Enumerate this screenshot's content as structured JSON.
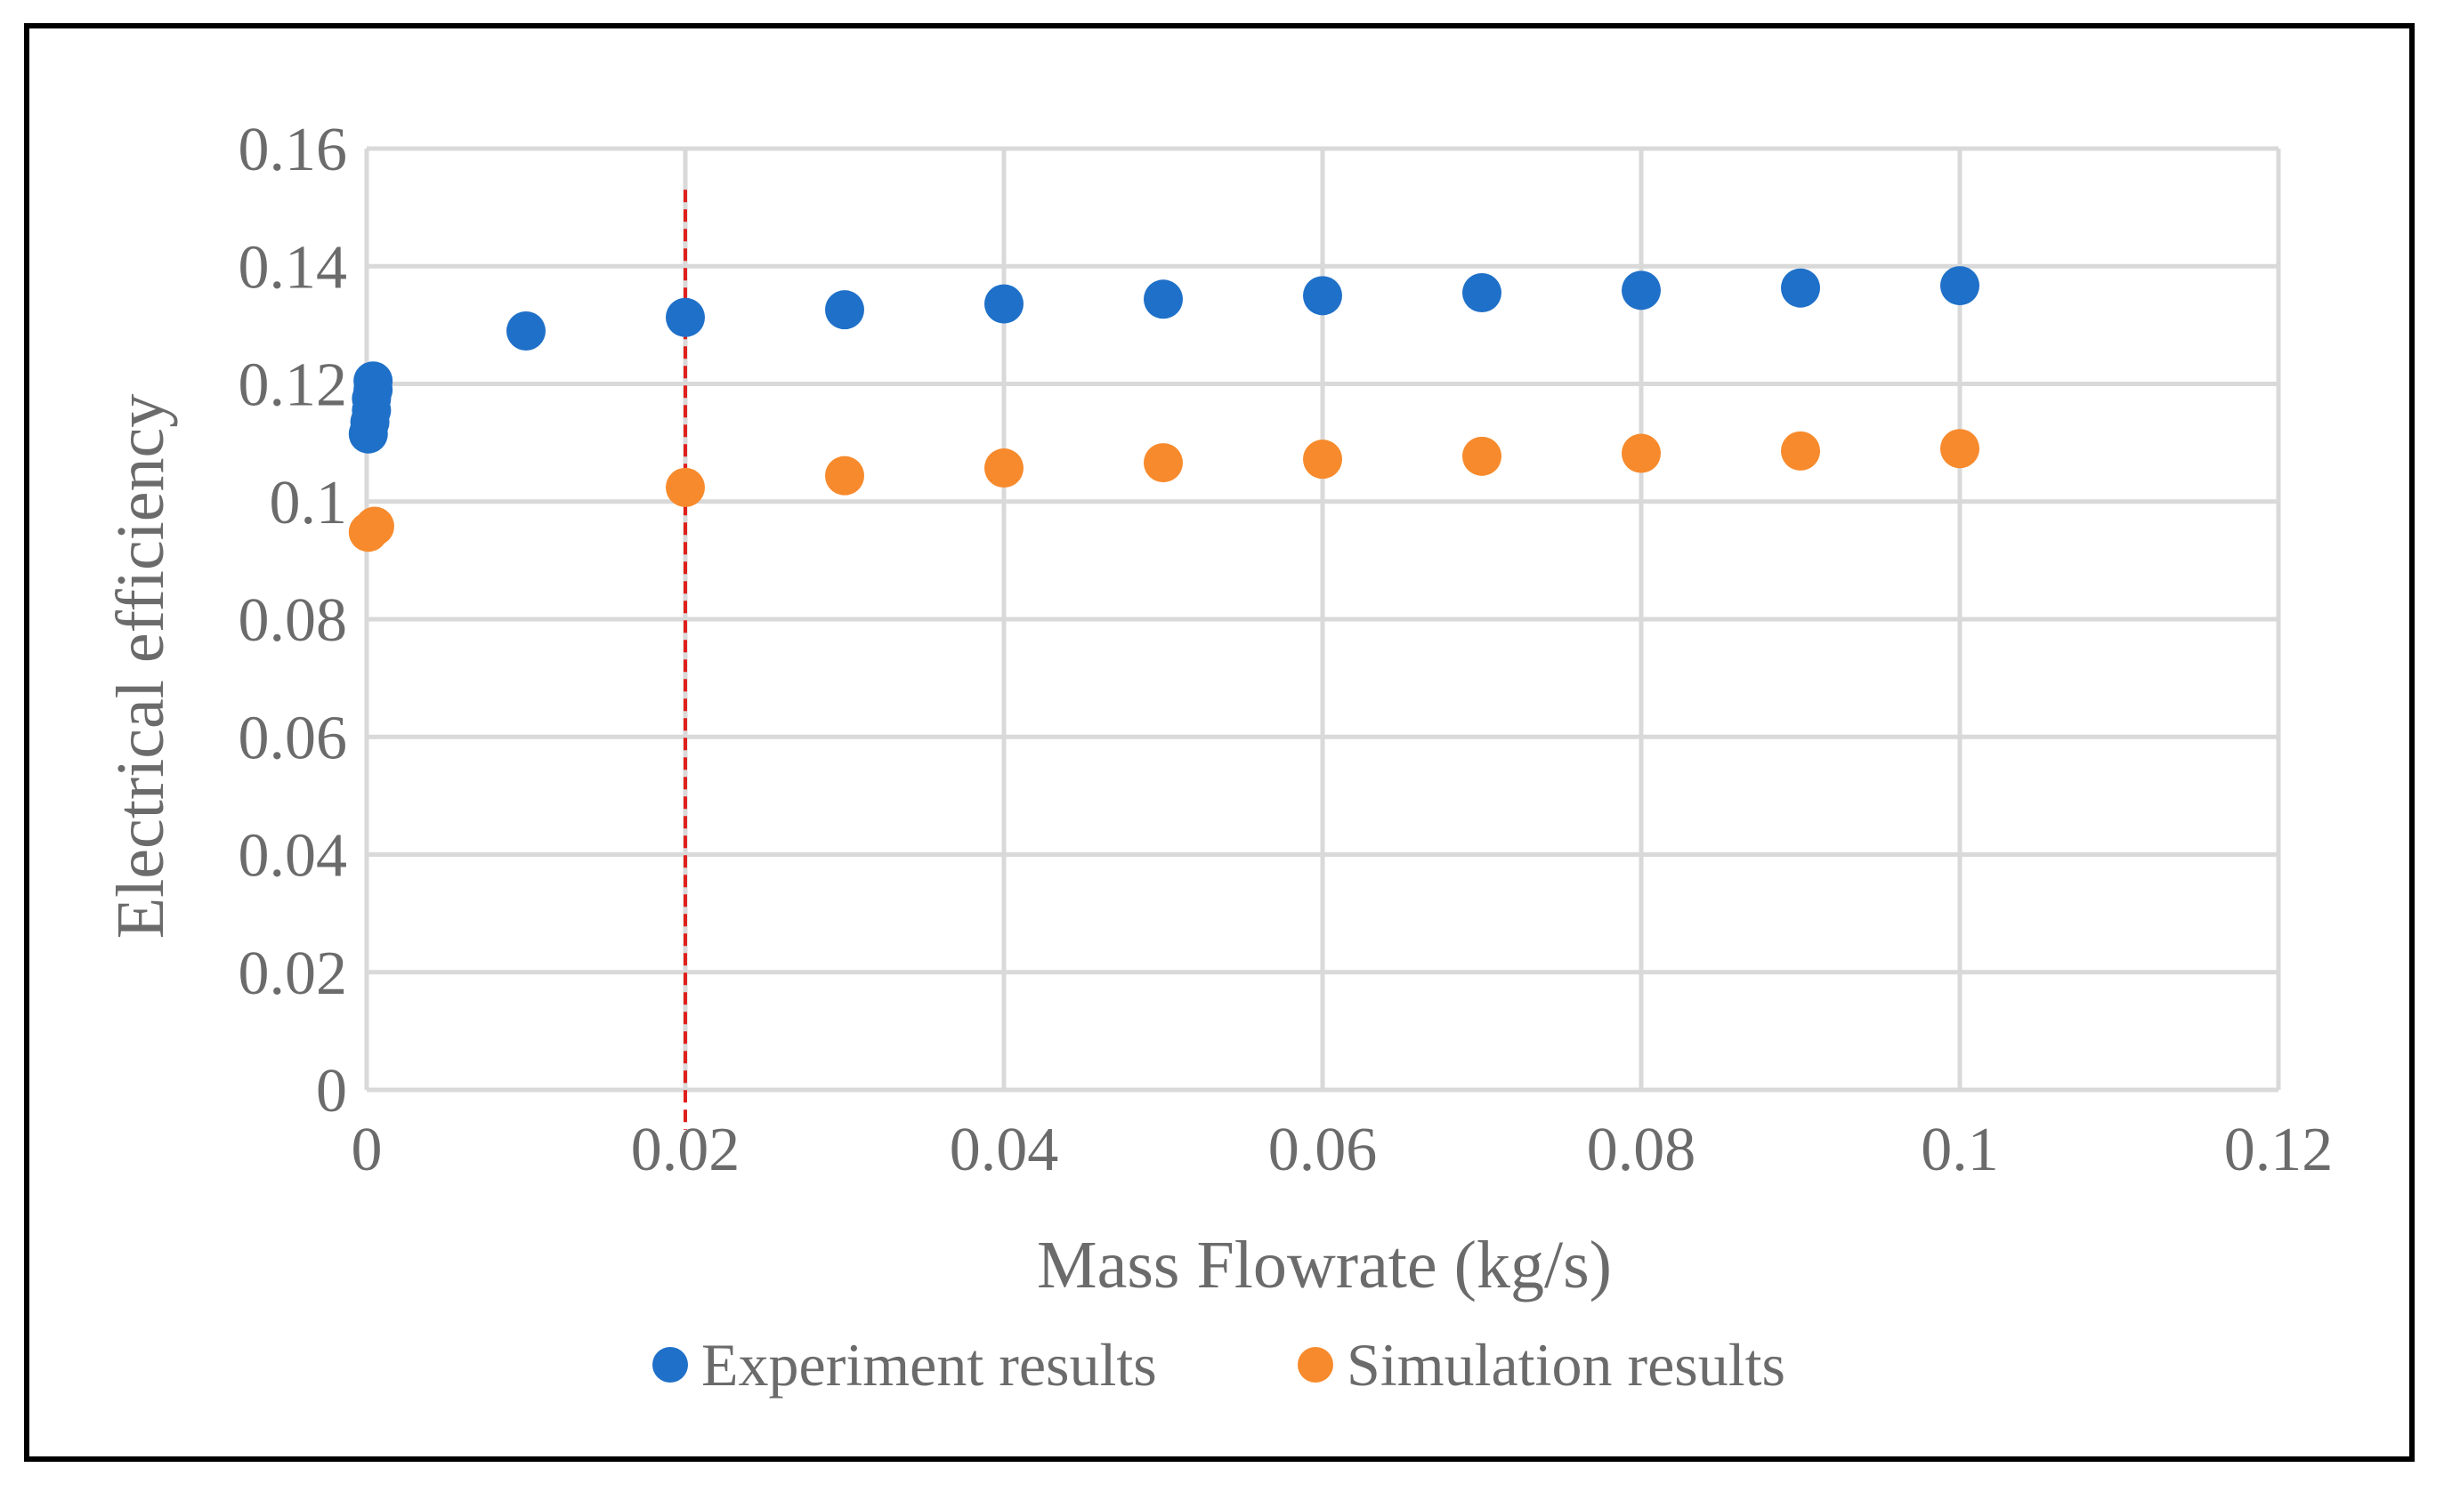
{
  "chart_data": {
    "type": "scatter",
    "xlabel": "Mass Flowrate (kg/s)",
    "ylabel": "Electrical efficiency",
    "xlim": [
      0,
      0.12
    ],
    "ylim": [
      0,
      0.16
    ],
    "x_ticks": [
      "0",
      "0.02",
      "0.04",
      "0.06",
      "0.08",
      "0.1",
      "0.12"
    ],
    "y_ticks": [
      "0",
      "0.02",
      "0.04",
      "0.06",
      "0.08",
      "0.1",
      "0.12",
      "0.14",
      "0.16"
    ],
    "grid": true,
    "legend_position": "bottom",
    "reference_line": {
      "x": 0.02,
      "style": "dashed",
      "color": "#e0201b"
    },
    "series": [
      {
        "name": "Experiment results",
        "color": "#1f70c8",
        "points": [
          [
            0.0001,
            0.1115
          ],
          [
            0.0002,
            0.1135
          ],
          [
            0.0003,
            0.1155
          ],
          [
            0.0003,
            0.1175
          ],
          [
            0.0004,
            0.119
          ],
          [
            0.0004,
            0.1205
          ],
          [
            0.01,
            0.129
          ],
          [
            0.02,
            0.1313
          ],
          [
            0.03,
            0.1326
          ],
          [
            0.04,
            0.1336
          ],
          [
            0.05,
            0.1344
          ],
          [
            0.06,
            0.135
          ],
          [
            0.07,
            0.1355
          ],
          [
            0.08,
            0.1359
          ],
          [
            0.09,
            0.1363
          ],
          [
            0.1,
            0.1367
          ]
        ]
      },
      {
        "name": "Simulation results",
        "color": "#f78a2c",
        "points": [
          [
            0.0001,
            0.0948
          ],
          [
            0.0005,
            0.0958
          ],
          [
            0.02,
            0.1024
          ],
          [
            0.03,
            0.1044
          ],
          [
            0.04,
            0.1057
          ],
          [
            0.05,
            0.1066
          ],
          [
            0.06,
            0.1072
          ],
          [
            0.07,
            0.1077
          ],
          [
            0.08,
            0.1082
          ],
          [
            0.09,
            0.1086
          ],
          [
            0.1,
            0.109
          ]
        ]
      }
    ]
  }
}
